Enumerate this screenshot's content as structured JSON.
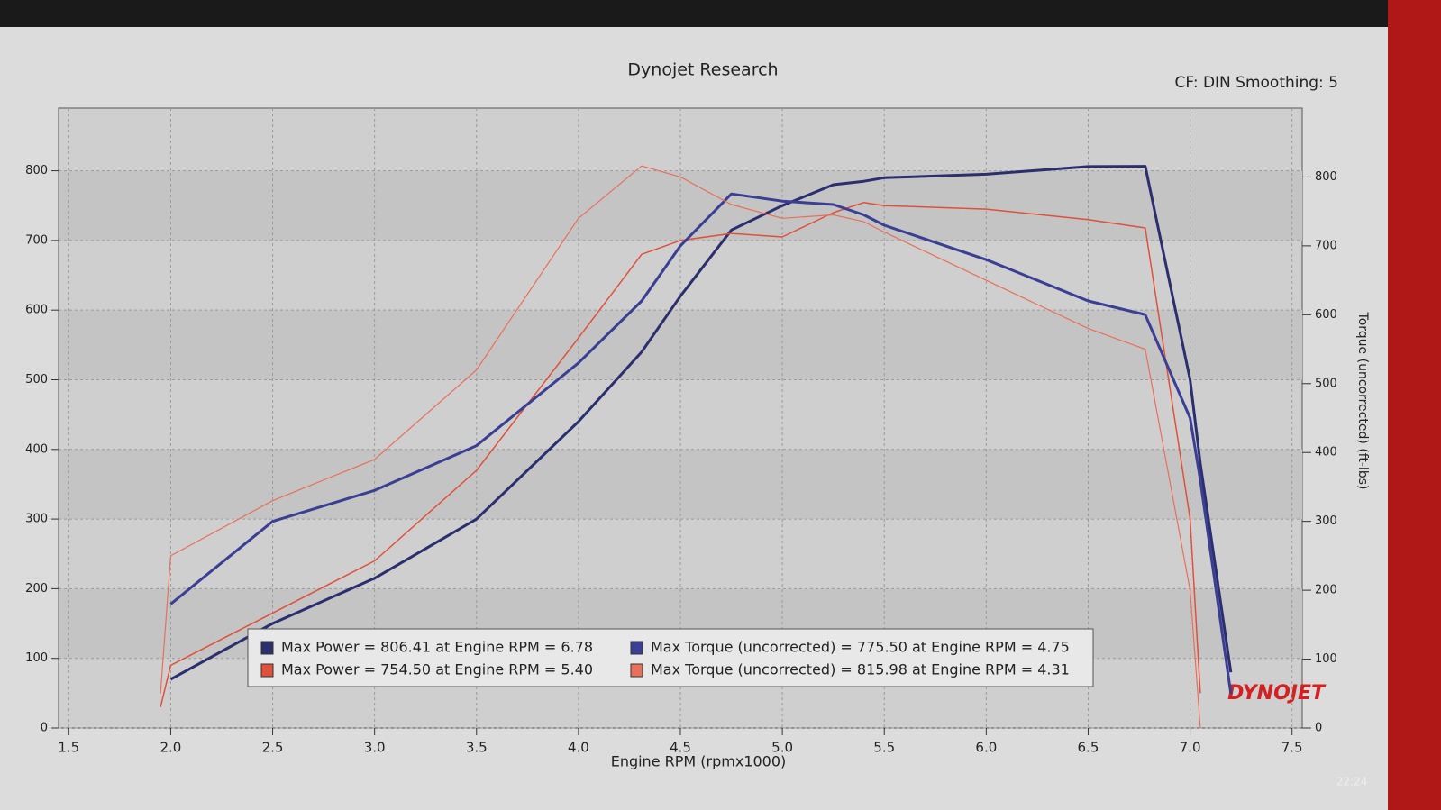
{
  "chart_data": {
    "type": "line",
    "title": "Dynojet Research",
    "subtitle": "CF: DIN Smoothing: 5",
    "x_label": "Engine RPM (rpmx1000)",
    "y2_label": "Torque (uncorrected) (ft-lbs)",
    "logo": "DYNOJET",
    "clock": "22:24",
    "x": [
      1.95,
      2.0,
      2.5,
      3.0,
      3.5,
      4.0,
      4.31,
      4.5,
      4.75,
      5.0,
      5.25,
      5.4,
      5.5,
      6.0,
      6.5,
      6.78,
      7.0,
      7.05,
      7.2
    ],
    "series": [
      {
        "name": "Max Power = 806.41 at Engine RPM = 6.78",
        "color": "#2b2f6e",
        "width": 3,
        "values": [
          null,
          70,
          150,
          215,
          300,
          440,
          540,
          620,
          715,
          750,
          780,
          785,
          790,
          795,
          806,
          806.41,
          500,
          380,
          80
        ]
      },
      {
        "name": "Max Power = 754.50 at Engine RPM = 5.40",
        "color": "#e0503a",
        "width": 1.5,
        "values": [
          30,
          90,
          165,
          240,
          370,
          560,
          680,
          700,
          710,
          705,
          740,
          754.5,
          750,
          745,
          730,
          718,
          300,
          50,
          null
        ]
      },
      {
        "name": "Max Torque (uncorrected) = 775.50 at Engine RPM = 4.75",
        "color": "#3a3f94",
        "width": 3,
        "axis": "y2",
        "values": [
          null,
          180,
          300,
          345,
          410,
          530,
          620,
          700,
          775.5,
          765,
          760,
          745,
          730,
          680,
          620,
          600,
          450,
          360,
          50
        ]
      },
      {
        "name": "Max Torque (uncorrected) = 815.98 at Engine RPM = 4.31",
        "color": "#e8705a",
        "width": 1.2,
        "axis": "y2",
        "values": [
          50,
          250,
          330,
          390,
          520,
          740,
          815.98,
          800,
          760,
          740,
          745,
          735,
          720,
          650,
          580,
          550,
          200,
          0,
          null
        ]
      }
    ],
    "xlim": [
      1.45,
      7.55
    ],
    "xticks": [
      1.5,
      {
        "value": 2,
        "label": "2.0"
      },
      2.5,
      {
        "value": 3,
        "label": "3.0"
      },
      3.5,
      {
        "value": 4,
        "label": "4.0"
      },
      4.5,
      {
        "value": 5,
        "label": "5.0"
      },
      5.5,
      {
        "value": 6,
        "label": "6.0"
      },
      6.5,
      {
        "value": 7,
        "label": "7.0"
      },
      7.5
    ],
    "ylim": [
      0,
      890
    ],
    "yticks": [
      0,
      100,
      200,
      300,
      400,
      500,
      600,
      700,
      800
    ],
    "y2lim": [
      0,
      900
    ],
    "y2ticks": [
      0,
      100,
      200,
      300,
      400,
      500,
      600,
      700,
      800
    ],
    "grid": true
  }
}
